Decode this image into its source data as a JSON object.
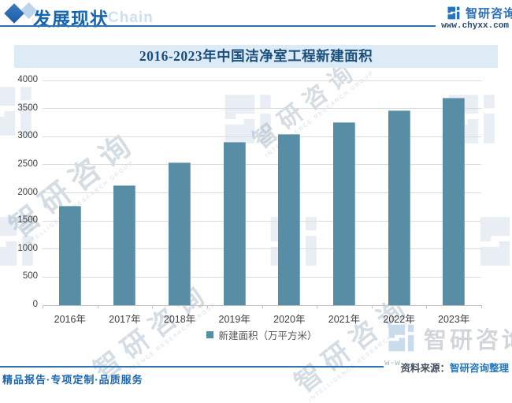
{
  "header": {
    "section_title": "发展现状",
    "background_word": "Chain",
    "brand_name": "智研咨询",
    "brand_url": "www.chyxx.com"
  },
  "chart_data": {
    "type": "bar",
    "title": "2016-2023年中国洁净室工程新建面积",
    "categories": [
      "2016年",
      "2017年",
      "2018年",
      "2019年",
      "2020年",
      "2021年",
      "2022年",
      "2023年"
    ],
    "series": [
      {
        "name": "新建面积（万平方米）",
        "values": [
          1770,
          2130,
          2540,
          2900,
          3045,
          3260,
          3470,
          3695
        ]
      }
    ],
    "ylim": [
      0,
      4000
    ],
    "yticks": [
      0,
      500,
      1000,
      1500,
      2000,
      2500,
      3000,
      3500,
      4000
    ],
    "grid": true,
    "legend_position": "bottom",
    "bar_color": "#588da6"
  },
  "footer": {
    "source_label": "资料来源：",
    "source_value": "智研咨询整理",
    "slogan": "精品报告·专项定制·品质服务",
    "watermark_brand": "智研咨询",
    "watermark_www": "w-w"
  },
  "watermarks": {
    "diagonal_text": "智研咨询",
    "diagonal_sub": "INTELLIGENCE RESEARCH GROUP"
  },
  "colors": {
    "accent_blue": "#2e75b6",
    "bar": "#588da6",
    "banner_bg": "#ddebf7",
    "title_text": "#1a4f7d",
    "grid": "#dcdcdc",
    "axis_text": "#3f3f3f",
    "watermark": "#a9bfcf"
  }
}
